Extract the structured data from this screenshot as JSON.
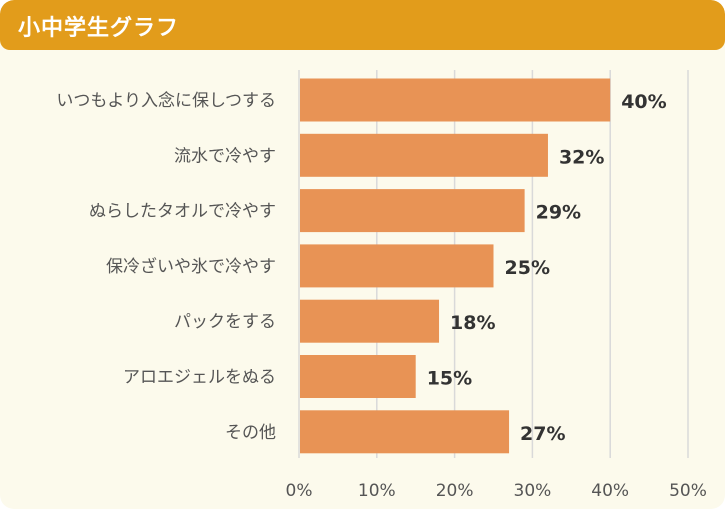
{
  "header": {
    "title": "小中学生グラフ"
  },
  "colors": {
    "header": "#e29c1b",
    "bar": "#e89355",
    "background": "#fcfaec",
    "grid": "#d9d9d9",
    "label": "#555555"
  },
  "chart_data": {
    "type": "bar",
    "orientation": "horizontal",
    "categories": [
      "いつもより入念に保しつする",
      "流水で冷やす",
      "ぬらしたタオルで冷やす",
      "保冷ざいや氷で冷やす",
      "パックをする",
      "アロエジェルをぬる",
      "その他"
    ],
    "values": [
      40,
      32,
      29,
      25,
      18,
      15,
      27
    ],
    "value_labels": [
      "40%",
      "32%",
      "29%",
      "25%",
      "18%",
      "15%",
      "27%"
    ],
    "xlim": [
      0,
      50
    ],
    "xticks": [
      0,
      10,
      20,
      30,
      40,
      50
    ],
    "xtick_labels": [
      "0%",
      "10%",
      "20%",
      "30%",
      "40%",
      "50%"
    ],
    "grid": true
  }
}
